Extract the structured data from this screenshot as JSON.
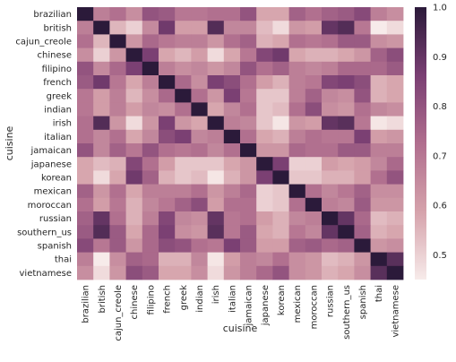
{
  "chart_data": {
    "type": "heatmap",
    "title": "",
    "xlabel": "cuisine",
    "ylabel": "cuisine",
    "x_categories": [
      "brazilian",
      "british",
      "cajun_creole",
      "chinese",
      "filipino",
      "french",
      "greek",
      "indian",
      "irish",
      "italian",
      "jamaican",
      "japanese",
      "korean",
      "mexican",
      "moroccan",
      "russian",
      "southern_us",
      "spanish",
      "thai",
      "vietnamese"
    ],
    "y_categories": [
      "brazilian",
      "british",
      "cajun_creole",
      "chinese",
      "filipino",
      "french",
      "greek",
      "indian",
      "irish",
      "italian",
      "jamaican",
      "japanese",
      "korean",
      "mexican",
      "moroccan",
      "russian",
      "southern_us",
      "spanish",
      "thai",
      "vietnamese"
    ],
    "values": [
      [
        1.0,
        0.68,
        0.72,
        0.64,
        0.8,
        0.78,
        0.7,
        0.7,
        0.72,
        0.72,
        0.8,
        0.58,
        0.58,
        0.76,
        0.72,
        0.76,
        0.78,
        0.83,
        0.68,
        0.64
      ],
      [
        0.68,
        1.0,
        0.55,
        0.5,
        0.65,
        0.88,
        0.6,
        0.6,
        0.93,
        0.66,
        0.66,
        0.54,
        0.48,
        0.62,
        0.6,
        0.9,
        0.93,
        0.7,
        0.45,
        0.48
      ],
      [
        0.72,
        0.55,
        1.0,
        0.62,
        0.74,
        0.7,
        0.68,
        0.68,
        0.62,
        0.72,
        0.76,
        0.56,
        0.58,
        0.72,
        0.7,
        0.72,
        0.78,
        0.78,
        0.64,
        0.62
      ],
      [
        0.64,
        0.5,
        0.62,
        1.0,
        0.86,
        0.58,
        0.55,
        0.6,
        0.48,
        0.58,
        0.7,
        0.84,
        0.88,
        0.58,
        0.56,
        0.56,
        0.58,
        0.62,
        0.76,
        0.82
      ],
      [
        0.8,
        0.65,
        0.74,
        0.86,
        1.0,
        0.68,
        0.64,
        0.66,
        0.62,
        0.66,
        0.8,
        0.72,
        0.76,
        0.68,
        0.66,
        0.68,
        0.74,
        0.74,
        0.74,
        0.78
      ],
      [
        0.78,
        0.88,
        0.7,
        0.58,
        0.68,
        1.0,
        0.74,
        0.64,
        0.86,
        0.82,
        0.72,
        0.6,
        0.56,
        0.68,
        0.7,
        0.84,
        0.86,
        0.82,
        0.56,
        0.58
      ],
      [
        0.7,
        0.6,
        0.68,
        0.55,
        0.64,
        0.74,
        1.0,
        0.72,
        0.62,
        0.86,
        0.7,
        0.52,
        0.52,
        0.68,
        0.76,
        0.66,
        0.64,
        0.8,
        0.56,
        0.58
      ],
      [
        0.7,
        0.6,
        0.68,
        0.6,
        0.66,
        0.64,
        0.72,
        1.0,
        0.58,
        0.66,
        0.72,
        0.52,
        0.54,
        0.72,
        0.82,
        0.64,
        0.62,
        0.72,
        0.66,
        0.64
      ],
      [
        0.72,
        0.93,
        0.62,
        0.48,
        0.62,
        0.86,
        0.62,
        0.58,
        1.0,
        0.68,
        0.66,
        0.52,
        0.46,
        0.62,
        0.6,
        0.9,
        0.92,
        0.7,
        0.46,
        0.48
      ],
      [
        0.72,
        0.66,
        0.72,
        0.58,
        0.66,
        0.82,
        0.86,
        0.66,
        0.68,
        1.0,
        0.72,
        0.58,
        0.56,
        0.68,
        0.72,
        0.7,
        0.7,
        0.86,
        0.6,
        0.62
      ],
      [
        0.8,
        0.66,
        0.76,
        0.7,
        0.8,
        0.72,
        0.7,
        0.72,
        0.66,
        0.72,
        1.0,
        0.62,
        0.62,
        0.74,
        0.72,
        0.72,
        0.78,
        0.78,
        0.68,
        0.68
      ],
      [
        0.58,
        0.54,
        0.56,
        0.84,
        0.72,
        0.6,
        0.52,
        0.52,
        0.52,
        0.58,
        0.62,
        1.0,
        0.86,
        0.5,
        0.5,
        0.6,
        0.58,
        0.6,
        0.66,
        0.74
      ],
      [
        0.58,
        0.48,
        0.58,
        0.88,
        0.76,
        0.56,
        0.52,
        0.54,
        0.46,
        0.56,
        0.62,
        0.86,
        1.0,
        0.52,
        0.52,
        0.56,
        0.56,
        0.6,
        0.72,
        0.8
      ],
      [
        0.76,
        0.62,
        0.72,
        0.58,
        0.68,
        0.68,
        0.68,
        0.72,
        0.62,
        0.68,
        0.74,
        0.5,
        0.52,
        1.0,
        0.72,
        0.66,
        0.7,
        0.76,
        0.64,
        0.64
      ],
      [
        0.72,
        0.6,
        0.7,
        0.56,
        0.66,
        0.7,
        0.76,
        0.82,
        0.6,
        0.72,
        0.72,
        0.5,
        0.52,
        0.72,
        1.0,
        0.68,
        0.66,
        0.78,
        0.62,
        0.62
      ],
      [
        0.76,
        0.9,
        0.72,
        0.56,
        0.68,
        0.84,
        0.66,
        0.64,
        0.9,
        0.7,
        0.72,
        0.6,
        0.56,
        0.66,
        0.68,
        1.0,
        0.9,
        0.74,
        0.54,
        0.56
      ],
      [
        0.78,
        0.93,
        0.78,
        0.58,
        0.74,
        0.86,
        0.64,
        0.62,
        0.92,
        0.7,
        0.78,
        0.58,
        0.56,
        0.7,
        0.66,
        0.9,
        1.0,
        0.76,
        0.56,
        0.58
      ],
      [
        0.83,
        0.7,
        0.78,
        0.62,
        0.74,
        0.82,
        0.8,
        0.72,
        0.7,
        0.86,
        0.78,
        0.6,
        0.6,
        0.76,
        0.78,
        0.74,
        0.76,
        1.0,
        0.62,
        0.64
      ],
      [
        0.68,
        0.45,
        0.64,
        0.76,
        0.74,
        0.56,
        0.56,
        0.66,
        0.46,
        0.6,
        0.68,
        0.66,
        0.72,
        0.64,
        0.62,
        0.54,
        0.56,
        0.62,
        1.0,
        0.92
      ],
      [
        0.64,
        0.48,
        0.62,
        0.82,
        0.78,
        0.58,
        0.58,
        0.64,
        0.48,
        0.62,
        0.68,
        0.74,
        0.8,
        0.64,
        0.62,
        0.56,
        0.58,
        0.64,
        0.92,
        1.0
      ]
    ],
    "colorbar": {
      "min": 0.45,
      "max": 1.0,
      "ticks": [
        0.5,
        0.6,
        0.7,
        0.8,
        0.9,
        1.0
      ],
      "tick_labels": [
        "0.5",
        "0.6",
        "0.7",
        "0.8",
        "0.9",
        "1.0"
      ]
    },
    "colors": {
      "low": "#f7ebea",
      "mid1": "#d5a2ab",
      "mid2": "#b06e8e",
      "mid3": "#7a3f73",
      "high": "#2b1a3a"
    }
  }
}
